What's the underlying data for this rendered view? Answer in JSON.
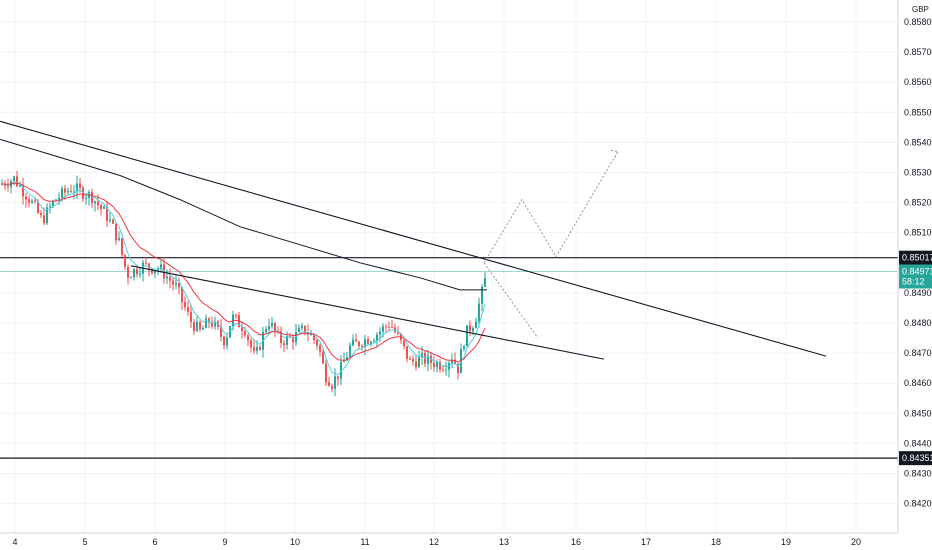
{
  "chart_data": {
    "type": "candlestick",
    "currency": "GBP",
    "ylim": [
      0.8411,
      0.8592
    ],
    "y_ticks": [
      "0.85800",
      "0.85700",
      "0.85600",
      "0.85500",
      "0.85400",
      "0.85300",
      "0.85200",
      "0.85100",
      "0.84900",
      "0.84800",
      "0.84700",
      "0.84600",
      "0.84500",
      "0.84400",
      "0.84300",
      "0.84200"
    ],
    "x_ticks": [
      "4",
      "5",
      "6",
      "9",
      "10",
      "11",
      "12",
      "13",
      "16",
      "17",
      "18",
      "19",
      "20"
    ],
    "price_badges": {
      "resistance": "0.85017",
      "current": "0.84971",
      "countdown": "58:12",
      "support": "0.84351"
    },
    "horizontal_levels": [
      0.85017,
      0.84351
    ],
    "current_price": 0.84971,
    "trendlines": [
      {
        "from": [
          0,
          0.8547
        ],
        "to": [
          826,
          0.8469
        ]
      },
      {
        "from": [
          131,
          0.8499
        ],
        "to": [
          604,
          0.8468
        ]
      }
    ],
    "projection_path": [
      [
        484,
        0.85
      ],
      [
        522,
        0.8521
      ],
      [
        556,
        0.8502
      ],
      [
        618,
        0.8537
      ]
    ],
    "projection_alt": [
      [
        484,
        0.85
      ],
      [
        538,
        0.8475
      ]
    ],
    "colors": {
      "up": "#26a69a",
      "down": "#ef5350",
      "ma_fast": "#4dd0e1",
      "ma_mid": "#f23645",
      "ma_slow": "#131722",
      "current_line": "#26a69a",
      "badge_green": "#26a69a"
    }
  }
}
